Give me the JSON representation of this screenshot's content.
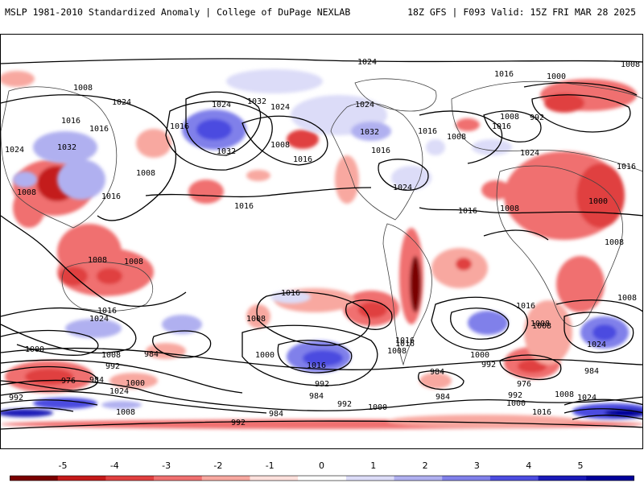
{
  "header": {
    "title_left": "MSLP 1981-2010 Standardized Anomaly | College of DuPage NEXLAB",
    "title_right": "18Z GFS | F093 Valid: 15Z FRI MAR 28 2025"
  },
  "colorbar": {
    "ticks": [
      "-5",
      "-4",
      "-3",
      "-2",
      "-1",
      "0",
      "1",
      "2",
      "3",
      "4",
      "5"
    ],
    "colors": [
      "#7a0000",
      "#c41a1a",
      "#e04040",
      "#f07070",
      "#f8a8a0",
      "#fde0dc",
      "#ffffff",
      "#dcdcf8",
      "#b0b0f0",
      "#8080ea",
      "#4c4ce0",
      "#1a1ab8",
      "#00009a"
    ]
  },
  "map": {
    "isobar_labels": [
      {
        "text": "1024"
      },
      {
        "text": "1008"
      },
      {
        "text": "1008"
      },
      {
        "text": "1024"
      },
      {
        "text": "1016"
      },
      {
        "text": "1024"
      },
      {
        "text": "1032"
      },
      {
        "text": "1024"
      },
      {
        "text": "1016"
      },
      {
        "text": "1032"
      },
      {
        "text": "1032"
      },
      {
        "text": "1008"
      },
      {
        "text": "1024"
      },
      {
        "text": "1016"
      },
      {
        "text": "1008"
      },
      {
        "text": "1016"
      },
      {
        "text": "1032"
      },
      {
        "text": "1024"
      },
      {
        "text": "1016"
      },
      {
        "text": "1008"
      },
      {
        "text": "1016"
      },
      {
        "text": "1016"
      },
      {
        "text": "1024"
      },
      {
        "text": "1016"
      },
      {
        "text": "1000"
      },
      {
        "text": "1016"
      },
      {
        "text": "1008"
      },
      {
        "text": "992"
      },
      {
        "text": "1016"
      },
      {
        "text": "1008"
      },
      {
        "text": "1024"
      },
      {
        "text": "1016"
      },
      {
        "text": "1000"
      },
      {
        "text": "1008"
      },
      {
        "text": "1008"
      },
      {
        "text": "1008"
      },
      {
        "text": "1008"
      },
      {
        "text": "1016"
      },
      {
        "text": "1016"
      },
      {
        "text": "1016"
      },
      {
        "text": "1024"
      },
      {
        "text": "1008"
      },
      {
        "text": "1016"
      },
      {
        "text": "1008"
      },
      {
        "text": "1000"
      },
      {
        "text": "1008"
      },
      {
        "text": "984"
      },
      {
        "text": "992"
      },
      {
        "text": "976"
      },
      {
        "text": "984"
      },
      {
        "text": "1000"
      },
      {
        "text": "1024"
      },
      {
        "text": "992"
      },
      {
        "text": "1008"
      },
      {
        "text": "1000"
      },
      {
        "text": "1016"
      },
      {
        "text": "992"
      },
      {
        "text": "984"
      },
      {
        "text": "992"
      },
      {
        "text": "984"
      },
      {
        "text": "1000"
      },
      {
        "text": "1008"
      },
      {
        "text": "1016"
      },
      {
        "text": "1000"
      },
      {
        "text": "992"
      },
      {
        "text": "984"
      },
      {
        "text": "984"
      },
      {
        "text": "976"
      },
      {
        "text": "1008"
      },
      {
        "text": "1024"
      },
      {
        "text": "1000"
      },
      {
        "text": "992"
      },
      {
        "text": "1016"
      },
      {
        "text": "1024"
      },
      {
        "text": "984"
      },
      {
        "text": "992"
      },
      {
        "text": "1008"
      },
      {
        "text": "1016"
      },
      {
        "text": "1008"
      }
    ]
  }
}
